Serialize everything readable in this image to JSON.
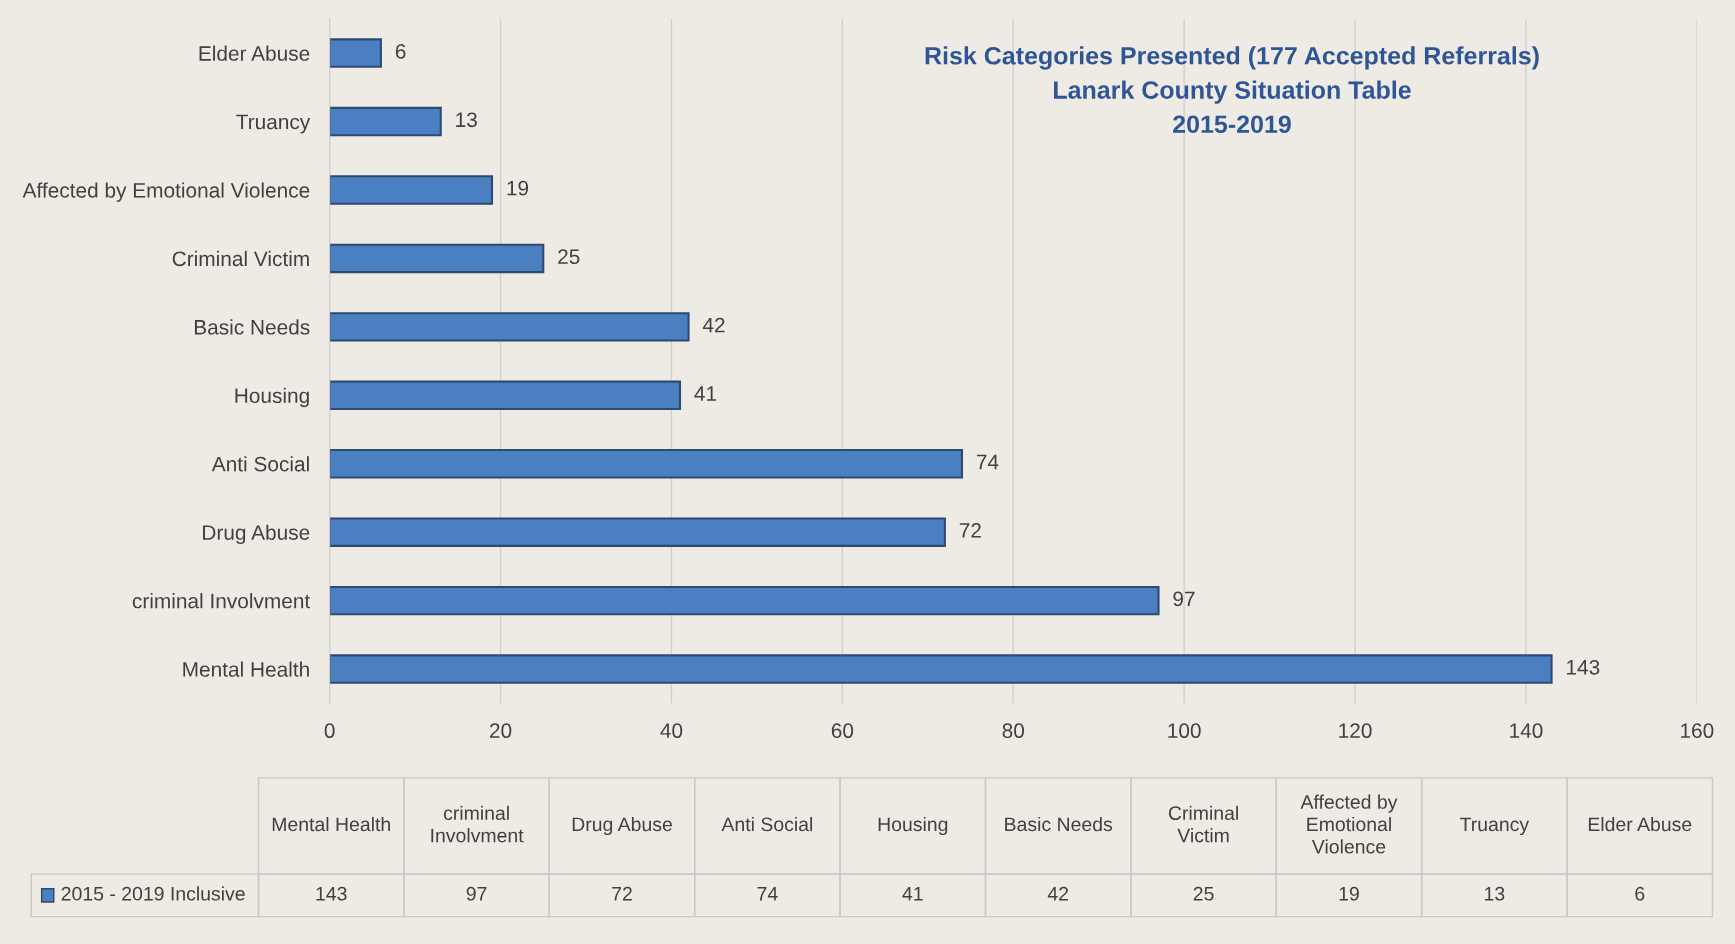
{
  "chart_data": [
    {
      "type": "bar",
      "orientation": "horizontal",
      "title": "Risk Categories Presented (177 Accepted Referrals)\nLanark County Situation Table\n2015-2019",
      "categories": [
        "Elder Abuse",
        "Truancy",
        "Affected by Emotional Violence",
        "Criminal Victim",
        "Basic Needs",
        "Housing",
        "Anti Social",
        "Drug Abuse",
        "criminal Involvment",
        "Mental Health"
      ],
      "series": [
        {
          "color": "#4a7fc1",
          "values": [
            6,
            13,
            19,
            25,
            42,
            41,
            74,
            72,
            97,
            143
          ]
        }
      ],
      "xlim": [
        0,
        160
      ],
      "xticks": [
        0,
        20,
        40,
        60,
        80,
        100,
        120,
        140,
        160
      ],
      "grid": "x",
      "data_labels": true
    },
    {
      "type": "other",
      "categories": [
        "Mental Health",
        "criminal Involvment",
        "Drug Abuse",
        "Anti Social",
        "Housing",
        "Basic Needs",
        "Criminal Victim",
        "Affected by Emotional Violence",
        "Truancy",
        "Elder Abuse"
      ],
      "series": [
        {
          "name": "2015 - 2019 Inclusive",
          "color": "#4a7fc1",
          "values": [
            143,
            97,
            72,
            74,
            41,
            42,
            25,
            19,
            13,
            6
          ]
        }
      ],
      "data_labels": true
    }
  ]
}
